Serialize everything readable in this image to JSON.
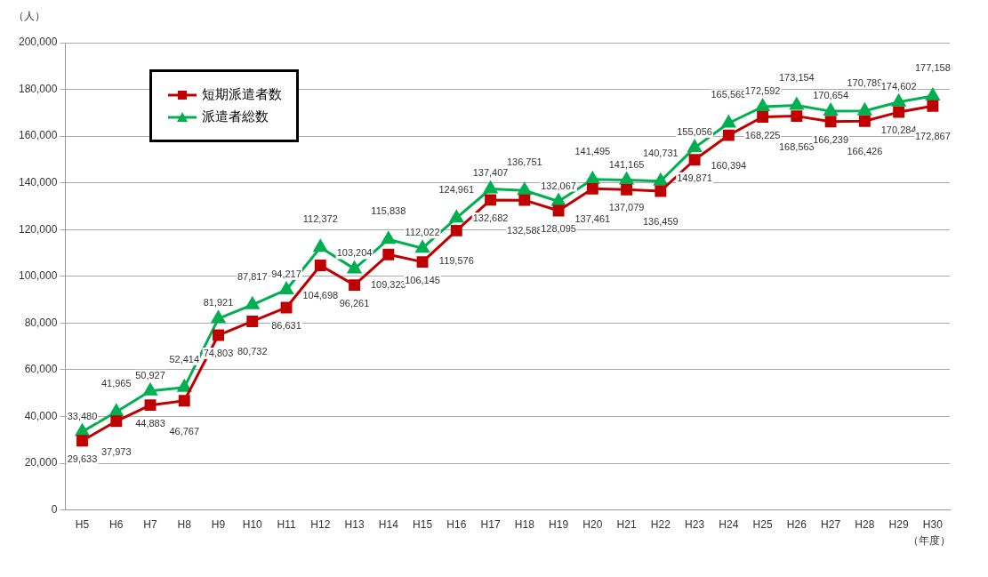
{
  "chart_data": {
    "type": "line",
    "ylabel": "（人）",
    "xlabel": "（年度）",
    "categories": [
      "H5",
      "H6",
      "H7",
      "H8",
      "H9",
      "H10",
      "H11",
      "H12",
      "H13",
      "H14",
      "H15",
      "H16",
      "H17",
      "H18",
      "H19",
      "H20",
      "H21",
      "H22",
      "H23",
      "H24",
      "H25",
      "H26",
      "H27",
      "H28",
      "H29",
      "H30"
    ],
    "series": [
      {
        "name": "短期派遣者数",
        "color": "#c00000",
        "marker": "square",
        "values": [
          29633,
          37973,
          44883,
          46767,
          74803,
          80732,
          86631,
          104698,
          96261,
          109323,
          106145,
          119576,
          132682,
          132588,
          128095,
          137461,
          137079,
          136459,
          149871,
          160394,
          168225,
          168563,
          166239,
          166426,
          170284,
          172867
        ],
        "value_labels": [
          "29,633",
          "37,973",
          "44,883",
          "46,767",
          "74,803",
          "80,732",
          "86,631",
          "104,698",
          "96,261",
          "109,323",
          "106,145",
          "119,576",
          "132,682",
          "132,588",
          "128,095",
          "137,461",
          "137,079",
          "136,459",
          "149,871",
          "160,394",
          "168,225",
          "168,563",
          "166,239",
          "166,426",
          "170,284",
          "172,867"
        ]
      },
      {
        "name": "派遣者総数",
        "color": "#00b050",
        "marker": "triangle",
        "values": [
          33480,
          41965,
          50927,
          52414,
          81921,
          87817,
          94217,
          112372,
          103204,
          115838,
          112022,
          124961,
          137407,
          136751,
          132067,
          141495,
          141165,
          140731,
          155056,
          165569,
          172592,
          173154,
          170654,
          170789,
          174602,
          177158
        ],
        "value_labels": [
          "33,480",
          "41,965",
          "50,927",
          "52,414",
          "81,921",
          "87,817",
          "94,217",
          "112,372",
          "103,204",
          "115,838",
          "112,022",
          "124,961",
          "137,407",
          "136,751",
          "132,067",
          "141,495",
          "141,165",
          "140,731",
          "155,056",
          "165,569",
          "172,592",
          "173,154",
          "170,654",
          "170,789",
          "174,602",
          "177,158"
        ]
      }
    ],
    "ylim": [
      0,
      200000
    ],
    "yticks": [
      {
        "value": 0,
        "label": "0"
      },
      {
        "value": 20000,
        "label": "20,000"
      },
      {
        "value": 40000,
        "label": "40,000"
      },
      {
        "value": 60000,
        "label": "60,000"
      },
      {
        "value": 80000,
        "label": "80,000"
      },
      {
        "value": 100000,
        "label": "100,000"
      },
      {
        "value": 120000,
        "label": "120,000"
      },
      {
        "value": 140000,
        "label": "140,000"
      },
      {
        "value": 160000,
        "label": "160,000"
      },
      {
        "value": 180000,
        "label": "180,000"
      },
      {
        "value": 200000,
        "label": "200,000"
      }
    ],
    "grid": "y",
    "legend": "top left"
  }
}
